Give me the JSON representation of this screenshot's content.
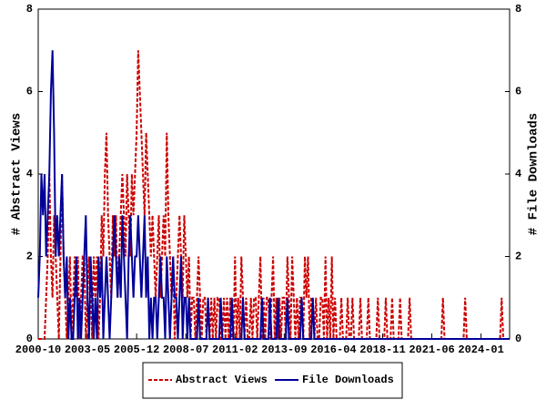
{
  "chart_data": {
    "type": "line",
    "x": [
      "2000-10",
      "2000-11",
      "2000-12",
      "2001-01",
      "2001-02",
      "2001-03",
      "2001-04",
      "2001-05",
      "2001-06",
      "2001-07",
      "2001-08",
      "2001-09",
      "2001-10",
      "2001-11",
      "2001-12",
      "2002-01",
      "2002-02",
      "2002-03",
      "2002-04",
      "2002-05",
      "2002-06",
      "2002-07",
      "2002-08",
      "2002-09",
      "2002-10",
      "2002-11",
      "2002-12",
      "2003-01",
      "2003-02",
      "2003-03",
      "2003-04",
      "2003-05",
      "2003-06",
      "2003-07",
      "2003-08",
      "2003-09",
      "2003-10",
      "2003-11",
      "2003-12",
      "2004-01",
      "2004-02",
      "2004-03",
      "2004-04",
      "2004-05",
      "2004-06",
      "2004-07",
      "2004-08",
      "2004-09",
      "2004-10",
      "2004-11",
      "2004-12",
      "2005-01",
      "2005-02",
      "2005-03",
      "2005-04",
      "2005-05",
      "2005-06",
      "2005-07",
      "2005-08",
      "2005-09",
      "2005-10",
      "2005-11",
      "2005-12",
      "2006-01",
      "2006-02",
      "2006-03",
      "2006-04",
      "2006-05",
      "2006-06",
      "2006-07",
      "2006-08",
      "2006-09",
      "2006-10",
      "2006-11",
      "2006-12",
      "2007-01",
      "2007-02",
      "2007-03",
      "2007-04",
      "2007-05",
      "2007-06",
      "2007-07",
      "2007-08",
      "2007-09",
      "2007-10",
      "2007-11",
      "2007-12",
      "2008-01",
      "2008-02",
      "2008-03",
      "2008-04",
      "2008-05",
      "2008-06",
      "2008-07",
      "2008-08",
      "2008-09",
      "2008-10",
      "2008-11",
      "2008-12",
      "2009-01",
      "2009-02",
      "2009-03",
      "2009-04",
      "2009-05",
      "2009-06",
      "2009-07",
      "2009-08",
      "2009-09",
      "2009-10",
      "2009-11",
      "2009-12",
      "2010-01",
      "2010-02",
      "2010-03",
      "2010-04",
      "2010-05",
      "2010-06",
      "2010-07",
      "2010-08",
      "2010-09",
      "2010-10",
      "2010-11",
      "2010-12",
      "2011-01",
      "2011-02",
      "2011-03",
      "2011-04",
      "2011-05",
      "2011-06",
      "2011-07",
      "2011-08",
      "2011-09",
      "2011-10",
      "2011-11",
      "2011-12",
      "2012-01",
      "2012-02",
      "2012-03",
      "2012-04",
      "2012-05",
      "2012-06",
      "2012-07",
      "2012-08",
      "2012-09",
      "2012-10",
      "2012-11",
      "2012-12",
      "2013-01",
      "2013-02",
      "2013-03",
      "2013-04",
      "2013-05",
      "2013-06",
      "2013-07",
      "2013-08",
      "2013-09",
      "2013-10",
      "2013-11",
      "2013-12",
      "2014-01",
      "2014-02",
      "2014-03",
      "2014-04",
      "2014-05",
      "2014-06",
      "2014-07",
      "2014-08",
      "2014-09",
      "2014-10",
      "2014-11",
      "2014-12",
      "2015-01",
      "2015-02",
      "2015-03",
      "2015-04",
      "2015-05",
      "2015-06",
      "2015-07",
      "2015-08",
      "2015-09",
      "2015-10",
      "2015-11",
      "2015-12",
      "2016-01",
      "2016-02",
      "2016-03",
      "2016-04",
      "2016-05",
      "2016-06",
      "2016-07",
      "2016-08",
      "2016-09",
      "2016-10",
      "2016-11",
      "2016-12",
      "2017-01",
      "2017-02",
      "2017-03",
      "2017-04",
      "2017-05",
      "2017-06",
      "2017-07",
      "2017-08",
      "2017-09",
      "2017-10",
      "2017-11",
      "2017-12",
      "2018-01",
      "2018-02",
      "2018-03",
      "2018-04",
      "2018-05",
      "2018-06",
      "2018-07",
      "2018-08",
      "2018-09",
      "2018-10",
      "2018-11",
      "2018-12",
      "2019-01",
      "2019-02",
      "2019-03",
      "2019-04",
      "2019-05",
      "2019-06",
      "2019-07",
      "2019-08",
      "2019-09",
      "2019-10",
      "2019-11",
      "2019-12",
      "2020-01",
      "2020-02",
      "2020-03",
      "2020-04",
      "2020-05",
      "2020-06",
      "2020-07",
      "2020-08",
      "2020-09",
      "2020-10",
      "2020-11",
      "2020-12",
      "2021-01",
      "2021-02",
      "2021-03",
      "2021-04",
      "2021-05",
      "2021-06",
      "2021-07",
      "2021-08",
      "2021-09",
      "2021-10",
      "2021-11",
      "2021-12",
      "2022-01",
      "2022-02",
      "2022-03",
      "2022-04",
      "2022-05",
      "2022-06",
      "2022-07",
      "2022-08",
      "2022-09",
      "2022-10",
      "2022-11",
      "2022-12",
      "2023-01",
      "2023-02",
      "2023-03",
      "2023-04",
      "2023-05",
      "2023-06",
      "2023-07",
      "2023-08",
      "2023-09",
      "2023-10",
      "2023-11",
      "2023-12",
      "2024-01",
      "2024-02",
      "2024-03",
      "2024-04",
      "2024-05",
      "2024-06",
      "2024-07",
      "2024-08",
      "2024-09",
      "2024-10",
      "2024-11",
      "2024-12",
      "2025-01",
      "2025-02",
      "2025-03",
      "2025-04",
      "2025-05",
      "2025-06",
      "2025-07"
    ],
    "series": [
      {
        "name": "Abstract Views",
        "color": "#cc0000",
        "dash": true,
        "values": [
          0,
          0,
          0,
          0,
          0,
          1,
          2,
          4,
          2,
          1,
          3,
          2,
          1,
          0,
          2,
          4,
          2,
          1,
          0,
          1,
          2,
          0,
          1,
          2,
          1,
          2,
          0,
          1,
          2,
          2,
          0,
          1,
          2,
          1,
          0,
          2,
          1,
          2,
          0,
          1,
          3,
          2,
          4,
          5,
          3,
          2,
          1,
          3,
          2,
          3,
          1,
          2,
          3,
          4,
          3,
          2,
          4,
          3,
          2,
          4,
          3,
          4,
          5,
          7,
          6,
          5,
          4,
          3,
          5,
          4,
          3,
          2,
          3,
          2,
          1,
          2,
          3,
          1,
          2,
          3,
          2,
          5,
          3,
          2,
          1,
          2,
          0,
          1,
          2,
          3,
          2,
          1,
          3,
          2,
          1,
          2,
          0,
          1,
          1,
          0,
          1,
          2,
          1,
          0,
          1,
          1,
          0,
          1,
          0,
          1,
          0,
          1,
          0,
          1,
          1,
          0,
          0,
          1,
          0,
          1,
          0,
          1,
          0,
          0,
          2,
          0,
          1,
          0,
          2,
          1,
          0,
          1,
          0,
          0,
          1,
          0,
          1,
          1,
          0,
          1,
          2,
          0,
          1,
          0,
          1,
          1,
          0,
          1,
          2,
          0,
          1,
          0,
          1,
          0,
          1,
          1,
          0,
          2,
          1,
          0,
          2,
          1,
          0,
          1,
          0,
          1,
          1,
          0,
          2,
          1,
          2,
          0,
          1,
          1,
          0,
          1,
          0,
          0,
          1,
          1,
          0,
          2,
          0,
          1,
          0,
          2,
          0,
          1,
          0,
          0,
          0,
          1,
          0,
          0,
          0,
          1,
          0,
          0,
          1,
          0,
          0,
          0,
          0,
          1,
          0,
          0,
          0,
          0,
          1,
          0,
          0,
          0,
          0,
          0,
          1,
          0,
          0,
          0,
          0,
          1,
          0,
          0,
          0,
          1,
          0,
          0,
          0,
          0,
          1,
          0,
          0,
          0,
          0,
          0,
          1,
          0,
          0,
          0,
          0,
          0,
          0,
          0,
          0,
          0,
          0,
          0,
          0,
          0,
          0,
          0,
          0,
          0,
          0,
          0,
          0,
          1,
          0,
          0,
          0,
          0,
          0,
          0,
          0,
          0,
          0,
          0,
          0,
          0,
          0,
          1,
          0,
          0,
          0,
          0,
          0,
          0,
          0,
          0,
          0,
          0,
          0,
          0,
          0,
          0,
          0,
          0,
          0,
          0,
          0,
          0,
          0,
          0,
          1,
          0,
          0,
          0,
          0,
          0
        ]
      },
      {
        "name": "File Downloads",
        "color": "#000099",
        "dash": false,
        "axis": "y2",
        "values": [
          1,
          2,
          4,
          3,
          4,
          2,
          3,
          4,
          6,
          7,
          5,
          2,
          3,
          2,
          3,
          4,
          2,
          1,
          2,
          0,
          1,
          0,
          0,
          1,
          2,
          0,
          1,
          0,
          1,
          2,
          3,
          1,
          0,
          2,
          1,
          0,
          1,
          0,
          2,
          1,
          2,
          0,
          1,
          2,
          1,
          0,
          1,
          2,
          3,
          2,
          1,
          2,
          1,
          3,
          2,
          1,
          0,
          2,
          3,
          2,
          1,
          2,
          2,
          3,
          2,
          1,
          2,
          3,
          1,
          2,
          0,
          1,
          0,
          1,
          1,
          0,
          1,
          2,
          1,
          1,
          0,
          2,
          1,
          0,
          1,
          2,
          1,
          1,
          0,
          1,
          2,
          0,
          1,
          1,
          0,
          1,
          0,
          0,
          0,
          0,
          0,
          1,
          0,
          0,
          0,
          0,
          0,
          1,
          0,
          0,
          0,
          0,
          0,
          0,
          0,
          1,
          0,
          0,
          0,
          0,
          0,
          0,
          1,
          0,
          0,
          0,
          0,
          0,
          0,
          1,
          0,
          0,
          0,
          0,
          0,
          0,
          0,
          0,
          0,
          0,
          0,
          1,
          0,
          0,
          0,
          0,
          1,
          0,
          0,
          0,
          0,
          1,
          0,
          0,
          0,
          0,
          0,
          1,
          0,
          0,
          0,
          0,
          0,
          0,
          0,
          0,
          1,
          0,
          0,
          0,
          0,
          0,
          0,
          1,
          0,
          0,
          0,
          0,
          0,
          0,
          0,
          0,
          0,
          0,
          0,
          0,
          0,
          0,
          0,
          0,
          0,
          0,
          0,
          0,
          0,
          0,
          0,
          0,
          0,
          0,
          0,
          0,
          0,
          0,
          0,
          0,
          0,
          0,
          0,
          0,
          0,
          0,
          0,
          0,
          0,
          0,
          0,
          0,
          0,
          0,
          0,
          0,
          0,
          0,
          0,
          0,
          0,
          0,
          0,
          0,
          0,
          0,
          0,
          0,
          0,
          0,
          0,
          0,
          0,
          0,
          0,
          0,
          0,
          0,
          0,
          0,
          0,
          0,
          0,
          0,
          0,
          0,
          0,
          0,
          0,
          0,
          0,
          0,
          0,
          0,
          0,
          0,
          0,
          0,
          0,
          0,
          0,
          0,
          0,
          0,
          0,
          0,
          0,
          0,
          0,
          0,
          0,
          0,
          0,
          0,
          0,
          0,
          0,
          0,
          0,
          0,
          0,
          0,
          0,
          0,
          0,
          0,
          0,
          0,
          0,
          0,
          0,
          0
        ]
      }
    ],
    "xlim": [
      "2000-10",
      "2025-07"
    ],
    "xticks": [
      "2000-10",
      "2003-05",
      "2005-12",
      "2008-07",
      "2011-02",
      "2013-09",
      "2016-04",
      "2018-11",
      "2021-06",
      "2024-01"
    ],
    "ylabel": "# Abstract Views",
    "y2label": "# File Downloads",
    "ylim": [
      0,
      8
    ],
    "yticks": [
      0,
      2,
      4,
      6,
      8
    ],
    "y2lim": [
      0,
      8
    ],
    "y2ticks": [
      0,
      2,
      4,
      6,
      8
    ]
  }
}
